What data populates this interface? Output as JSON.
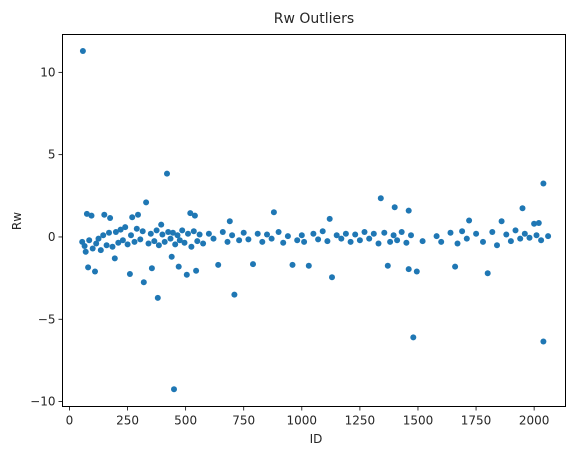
{
  "chart_data": {
    "type": "scatter",
    "title": "Rw Outliers",
    "xlabel": "ID",
    "ylabel": "Rw",
    "xlim": [
      -30,
      2135
    ],
    "ylim": [
      -10.3,
      12.3
    ],
    "xticks": [
      0,
      250,
      500,
      750,
      1000,
      1250,
      1500,
      1750,
      2000
    ],
    "yticks": [
      -10,
      -5,
      0,
      5,
      10
    ],
    "ytick_labels": [
      "−10",
      "−5",
      "0",
      "5",
      "10"
    ],
    "grid": false,
    "color": "#1f77b4",
    "series": [
      {
        "points": [
          [
            58,
            11.3
          ],
          [
            420,
            3.85
          ],
          [
            330,
            2.1
          ],
          [
            2040,
            3.25
          ],
          [
            1340,
            2.35
          ],
          [
            75,
            1.4
          ],
          [
            95,
            1.3
          ],
          [
            150,
            1.35
          ],
          [
            175,
            1.15
          ],
          [
            270,
            1.2
          ],
          [
            295,
            1.35
          ],
          [
            395,
            0.75
          ],
          [
            520,
            1.45
          ],
          [
            540,
            1.3
          ],
          [
            690,
            0.95
          ],
          [
            880,
            1.5
          ],
          [
            1120,
            1.1
          ],
          [
            1400,
            1.8
          ],
          [
            1460,
            1.6
          ],
          [
            1720,
            1.0
          ],
          [
            1860,
            0.95
          ],
          [
            1950,
            1.75
          ],
          [
            2000,
            0.8
          ],
          [
            2020,
            0.85
          ],
          [
            80,
            -1.85
          ],
          [
            110,
            -2.1
          ],
          [
            195,
            -1.3
          ],
          [
            260,
            -2.25
          ],
          [
            320,
            -2.75
          ],
          [
            355,
            -1.9
          ],
          [
            380,
            -3.7
          ],
          [
            440,
            -1.2
          ],
          [
            470,
            -1.8
          ],
          [
            505,
            -2.3
          ],
          [
            545,
            -2.05
          ],
          [
            640,
            -1.7
          ],
          [
            710,
            -3.5
          ],
          [
            790,
            -1.65
          ],
          [
            960,
            -1.7
          ],
          [
            1030,
            -1.75
          ],
          [
            1130,
            -2.45
          ],
          [
            1370,
            -1.75
          ],
          [
            1460,
            -1.95
          ],
          [
            1495,
            -2.1
          ],
          [
            1660,
            -1.8
          ],
          [
            1800,
            -2.2
          ],
          [
            1480,
            -6.1
          ],
          [
            2040,
            -6.35
          ],
          [
            450,
            -9.25
          ],
          [
            55,
            -0.3
          ],
          [
            65,
            -0.55
          ],
          [
            70,
            -0.9
          ],
          [
            85,
            -0.2
          ],
          [
            100,
            -0.7
          ],
          [
            115,
            -0.4
          ],
          [
            125,
            -0.1
          ],
          [
            135,
            -0.8
          ],
          [
            145,
            0.1
          ],
          [
            160,
            -0.5
          ],
          [
            170,
            0.25
          ],
          [
            185,
            -0.6
          ],
          [
            200,
            0.3
          ],
          [
            210,
            -0.35
          ],
          [
            220,
            0.45
          ],
          [
            230,
            -0.2
          ],
          [
            240,
            0.6
          ],
          [
            250,
            -0.45
          ],
          [
            265,
            0.1
          ],
          [
            280,
            -0.3
          ],
          [
            290,
            0.5
          ],
          [
            305,
            -0.15
          ],
          [
            315,
            0.35
          ],
          [
            340,
            -0.4
          ],
          [
            350,
            0.2
          ],
          [
            365,
            -0.25
          ],
          [
            375,
            0.4
          ],
          [
            385,
            -0.5
          ],
          [
            400,
            0.15
          ],
          [
            410,
            -0.3
          ],
          [
            425,
            0.3
          ],
          [
            435,
            -0.1
          ],
          [
            445,
            0.25
          ],
          [
            455,
            -0.45
          ],
          [
            465,
            0.1
          ],
          [
            475,
            -0.2
          ],
          [
            485,
            0.4
          ],
          [
            495,
            -0.35
          ],
          [
            510,
            0.2
          ],
          [
            525,
            -0.6
          ],
          [
            535,
            0.35
          ],
          [
            550,
            -0.25
          ],
          [
            560,
            0.15
          ],
          [
            575,
            -0.4
          ],
          [
            600,
            0.2
          ],
          [
            620,
            -0.1
          ],
          [
            660,
            0.3
          ],
          [
            680,
            -0.3
          ],
          [
            700,
            0.1
          ],
          [
            730,
            -0.2
          ],
          [
            750,
            0.25
          ],
          [
            770,
            -0.15
          ],
          [
            810,
            0.2
          ],
          [
            830,
            -0.3
          ],
          [
            850,
            0.15
          ],
          [
            870,
            -0.1
          ],
          [
            900,
            0.3
          ],
          [
            920,
            -0.35
          ],
          [
            940,
            0.05
          ],
          [
            980,
            -0.2
          ],
          [
            1000,
            0.1
          ],
          [
            1010,
            -0.3
          ],
          [
            1050,
            0.2
          ],
          [
            1070,
            -0.15
          ],
          [
            1090,
            0.35
          ],
          [
            1110,
            -0.25
          ],
          [
            1150,
            0.1
          ],
          [
            1170,
            -0.1
          ],
          [
            1190,
            0.2
          ],
          [
            1210,
            -0.3
          ],
          [
            1230,
            0.15
          ],
          [
            1250,
            -0.2
          ],
          [
            1270,
            0.3
          ],
          [
            1290,
            -0.1
          ],
          [
            1310,
            0.2
          ],
          [
            1330,
            -0.4
          ],
          [
            1355,
            0.25
          ],
          [
            1380,
            -0.3
          ],
          [
            1395,
            0.1
          ],
          [
            1410,
            -0.2
          ],
          [
            1430,
            0.3
          ],
          [
            1450,
            -0.35
          ],
          [
            1470,
            0.1
          ],
          [
            1520,
            -0.25
          ],
          [
            1580,
            0.05
          ],
          [
            1600,
            -0.3
          ],
          [
            1640,
            0.25
          ],
          [
            1670,
            -0.4
          ],
          [
            1690,
            0.35
          ],
          [
            1710,
            -0.1
          ],
          [
            1750,
            0.2
          ],
          [
            1780,
            -0.3
          ],
          [
            1820,
            0.3
          ],
          [
            1840,
            -0.5
          ],
          [
            1880,
            0.15
          ],
          [
            1900,
            -0.25
          ],
          [
            1920,
            0.4
          ],
          [
            1940,
            -0.1
          ],
          [
            1960,
            0.2
          ],
          [
            1980,
            -0.05
          ],
          [
            2010,
            0.1
          ],
          [
            2030,
            -0.2
          ],
          [
            2060,
            0.05
          ]
        ]
      }
    ]
  }
}
